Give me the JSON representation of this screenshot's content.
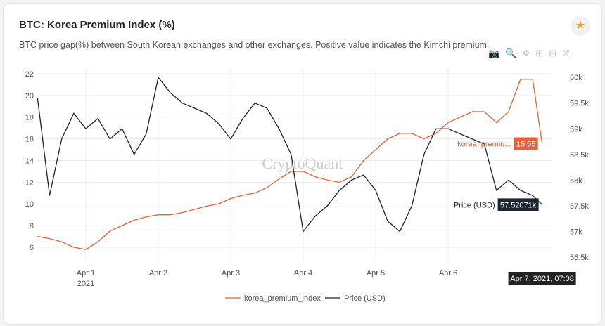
{
  "header": {
    "title": "BTC: Korea Premium Index (%)",
    "subtitle": "BTC price gap(%) between South Korean exchanges and other exchanges. Positive value indicates the Kimchi premium."
  },
  "toolbar": {
    "icons": [
      "camera-icon",
      "zoom-icon",
      "pan-icon",
      "zoom-in-icon",
      "zoom-out-icon",
      "autoscale-icon"
    ]
  },
  "watermark": "CryptoQuant",
  "colors": {
    "premium": "#e0623f",
    "price": "#1c2430",
    "star": "#f0a030"
  },
  "chart_data": {
    "type": "line",
    "x_ticks": [
      "Apr 1",
      "Apr 2",
      "Apr 3",
      "Apr 4",
      "Apr 5",
      "Apr 6"
    ],
    "x_tick_year": "2021",
    "y_left_ticks": [
      "6",
      "8",
      "10",
      "12",
      "14",
      "16",
      "18",
      "20",
      "22"
    ],
    "y_right_ticks": [
      "56.5k",
      "57k",
      "57.5k",
      "58k",
      "58.5k",
      "59k",
      "59.5k",
      "60k"
    ],
    "ylim_left": [
      5.5,
      22.6
    ],
    "ylim_right": [
      56.45,
      60.3
    ],
    "grid": true,
    "legend": "bottom",
    "x": [
      "2021-03-31T08:00",
      "2021-03-31T12:00",
      "2021-03-31T16:00",
      "2021-03-31T20:00",
      "2021-04-01T00:00",
      "2021-04-01T04:00",
      "2021-04-01T08:00",
      "2021-04-01T12:00",
      "2021-04-01T16:00",
      "2021-04-01T20:00",
      "2021-04-02T00:00",
      "2021-04-02T04:00",
      "2021-04-02T08:00",
      "2021-04-02T12:00",
      "2021-04-02T16:00",
      "2021-04-02T20:00",
      "2021-04-03T00:00",
      "2021-04-03T04:00",
      "2021-04-03T08:00",
      "2021-04-03T12:00",
      "2021-04-03T16:00",
      "2021-04-03T20:00",
      "2021-04-04T00:00",
      "2021-04-04T04:00",
      "2021-04-04T08:00",
      "2021-04-04T12:00",
      "2021-04-04T16:00",
      "2021-04-04T20:00",
      "2021-04-05T00:00",
      "2021-04-05T04:00",
      "2021-04-05T08:00",
      "2021-04-05T12:00",
      "2021-04-05T16:00",
      "2021-04-05T20:00",
      "2021-04-06T00:00",
      "2021-04-06T04:00",
      "2021-04-06T08:00",
      "2021-04-06T12:00",
      "2021-04-06T16:00",
      "2021-04-06T20:00",
      "2021-04-07T00:00",
      "2021-04-07T04:00",
      "2021-04-07T07:08"
    ],
    "series": [
      {
        "name": "korea_premium_index",
        "axis": "left",
        "values": [
          7.0,
          6.8,
          6.5,
          6.0,
          5.8,
          6.5,
          7.5,
          8.0,
          8.5,
          8.8,
          9.0,
          9.0,
          9.2,
          9.5,
          9.8,
          10.0,
          10.5,
          10.8,
          11.0,
          11.5,
          12.3,
          13.0,
          13.0,
          12.5,
          12.2,
          12.0,
          12.5,
          14.0,
          15.0,
          16.0,
          16.5,
          16.5,
          16.0,
          16.5,
          17.5,
          18.0,
          18.5,
          18.5,
          17.5,
          18.5,
          21.5,
          21.5,
          15.55
        ]
      },
      {
        "name": "Price (USD)",
        "axis": "right",
        "values": [
          59.6,
          57.7,
          58.8,
          59.3,
          59.0,
          59.2,
          58.8,
          59.0,
          58.5,
          58.9,
          60.0,
          59.7,
          59.5,
          59.4,
          59.3,
          59.1,
          58.8,
          59.2,
          59.5,
          59.4,
          59.0,
          58.5,
          57.0,
          57.3,
          57.5,
          57.8,
          58.0,
          58.1,
          57.8,
          57.2,
          57.0,
          57.5,
          58.5,
          59.0,
          59.0,
          58.9,
          58.8,
          58.7,
          57.8,
          58.0,
          57.8,
          57.7,
          57.52071
        ]
      }
    ],
    "hover": {
      "date": "Apr 7, 2021, 07:08",
      "premium_label": "korea_premiu...",
      "premium_value": "15.55",
      "price_label": "Price (USD)",
      "price_value": "57.52071k"
    }
  }
}
